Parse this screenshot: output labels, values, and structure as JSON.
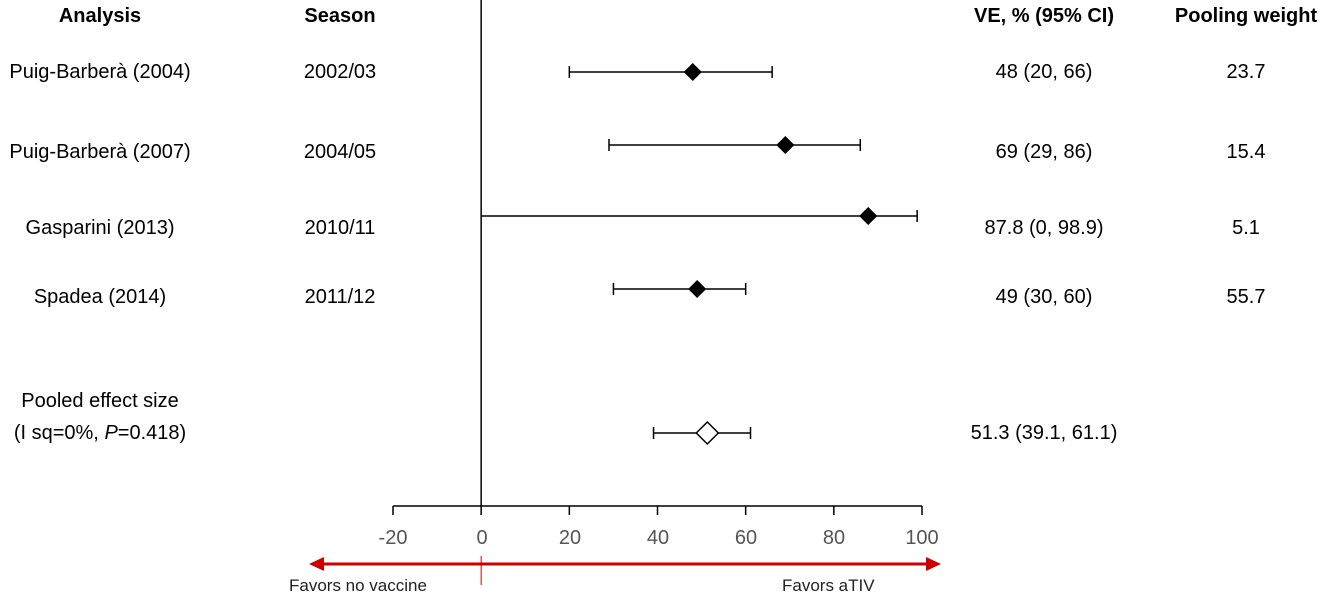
{
  "headers": {
    "analysis": "Analysis",
    "season": "Season",
    "ve": "VE, % (95% CI)",
    "weight": "Pooling weight"
  },
  "rows": [
    {
      "analysis": "Puig-Barberà (2004)",
      "season": "2002/03",
      "ve_text": "48 (20, 66)",
      "weight": "23.7"
    },
    {
      "analysis": "Puig-Barberà (2007)",
      "season": "2004/05",
      "ve_text": "69 (29, 86)",
      "weight": "15.4"
    },
    {
      "analysis": "Gasparini (2013)",
      "season": "2010/11",
      "ve_text": "87.8 (0, 98.9)",
      "weight": "5.1"
    },
    {
      "analysis": "Spadea (2014)",
      "season": "2011/12",
      "ve_text": "49 (30, 60)",
      "weight": "55.7"
    }
  ],
  "pooled": {
    "label_line1": "Pooled effect size",
    "label_line2_prefix": "(I sq=0%, ",
    "label_line2_p": "P",
    "label_line2_suffix": "=0.418)",
    "ve_text": "51.3 (39.1, 61.1)"
  },
  "axis": {
    "ticks": [
      "-20",
      "0",
      "20",
      "40",
      "60",
      "80",
      "100"
    ]
  },
  "favors": {
    "left": "Favors no vaccine",
    "right": "Favors aTIV",
    "arrow_color": "#cc0000"
  },
  "chart_data": {
    "type": "forest",
    "xlim": [
      -20,
      100
    ],
    "reference_line": 0,
    "series": [
      {
        "label": "Puig-Barberà (2004)",
        "estimate": 48,
        "lower": 20,
        "upper": 66,
        "marker": "filled-diamond"
      },
      {
        "label": "Puig-Barberà (2007)",
        "estimate": 69,
        "lower": 29,
        "upper": 86,
        "marker": "filled-diamond"
      },
      {
        "label": "Gasparini (2013)",
        "estimate": 87.8,
        "lower": 0,
        "upper": 98.9,
        "marker": "filled-diamond"
      },
      {
        "label": "Spadea (2014)",
        "estimate": 49,
        "lower": 30,
        "upper": 60,
        "marker": "filled-diamond"
      },
      {
        "label": "Pooled effect size",
        "estimate": 51.3,
        "lower": 39.1,
        "upper": 61.1,
        "marker": "open-diamond"
      }
    ],
    "xticks": [
      -20,
      0,
      20,
      40,
      60,
      80,
      100
    ]
  }
}
